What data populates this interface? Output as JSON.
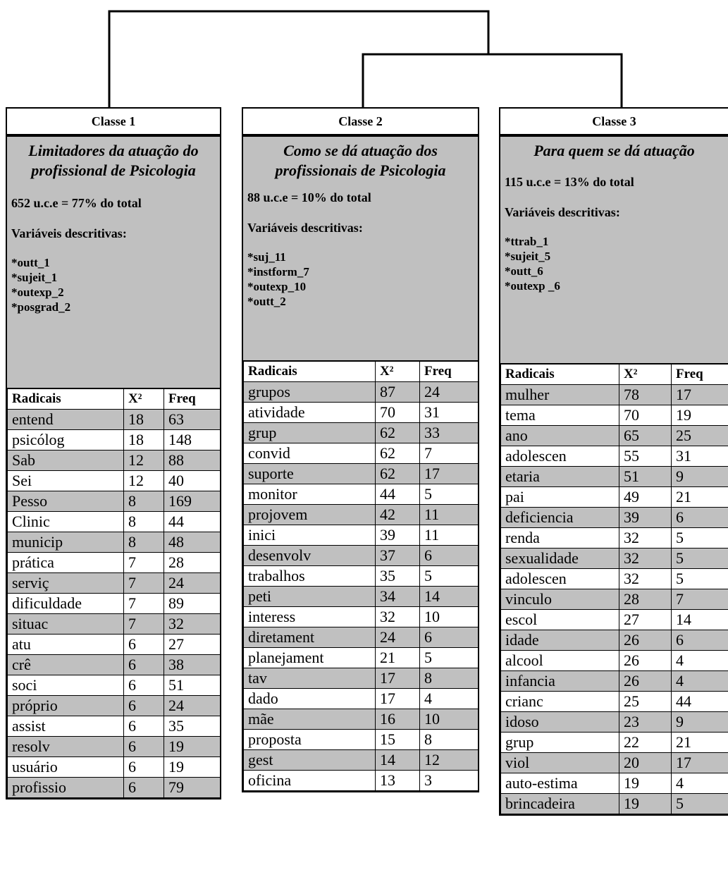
{
  "classes": [
    {
      "title": "Classe 1",
      "name": "Limitadores da atuação do profissional de Psicologia",
      "uce": "652 u.c.e = 77% do total",
      "variables_heading": "Variáveis descritivas:",
      "variables": [
        "*outt_1",
        "*sujeit_1",
        "*outexp_2",
        "*posgrad_2"
      ],
      "headers": [
        "Radicais",
        "X²",
        "Freq"
      ],
      "rows": [
        [
          "entend",
          "18",
          "63"
        ],
        [
          "psicólog",
          "18",
          "148"
        ],
        [
          "Sab",
          "12",
          "88"
        ],
        [
          "Sei",
          "12",
          "40"
        ],
        [
          "Pesso",
          "8",
          "169"
        ],
        [
          "Clinic",
          "8",
          "44"
        ],
        [
          "municip",
          "8",
          "48"
        ],
        [
          "prática",
          "7",
          "28"
        ],
        [
          "serviç",
          "7",
          "24"
        ],
        [
          "dificuldade",
          "7",
          "89"
        ],
        [
          "situac",
          "7",
          "32"
        ],
        [
          "atu",
          "6",
          "27"
        ],
        [
          "crê",
          "6",
          "38"
        ],
        [
          "soci",
          "6",
          "51"
        ],
        [
          "próprio",
          "6",
          "24"
        ],
        [
          "assist",
          "6",
          "35"
        ],
        [
          "resolv",
          "6",
          "19"
        ],
        [
          "usuário",
          "6",
          "19"
        ],
        [
          "profissio",
          "6",
          "79"
        ]
      ]
    },
    {
      "title": "Classe 2",
      "name": "Como se dá atuação dos profissionais de Psicologia",
      "uce": "88 u.c.e = 10% do total",
      "variables_heading": "Variáveis descritivas:",
      "variables": [
        "*suj_11",
        "*instform_7",
        "*outexp_10",
        "*outt_2"
      ],
      "headers": [
        "Radicais",
        "X²",
        "Freq"
      ],
      "rows": [
        [
          "grupos",
          "87",
          "24"
        ],
        [
          "atividade",
          "70",
          "31"
        ],
        [
          "grup",
          "62",
          "33"
        ],
        [
          "convid",
          "62",
          "7"
        ],
        [
          "suporte",
          "62",
          "17"
        ],
        [
          "monitor",
          "44",
          "5"
        ],
        [
          "projovem",
          "42",
          "11"
        ],
        [
          "inici",
          "39",
          "11"
        ],
        [
          "desenvolv",
          "37",
          "6"
        ],
        [
          "trabalhos",
          "35",
          "5"
        ],
        [
          "peti",
          "34",
          "14"
        ],
        [
          "interess",
          "32",
          "10"
        ],
        [
          "diretament",
          "24",
          "6"
        ],
        [
          "planejament",
          "21",
          "5"
        ],
        [
          "tav",
          "17",
          "8"
        ],
        [
          "dado",
          "17",
          "4"
        ],
        [
          "mãe",
          "16",
          "10"
        ],
        [
          "proposta",
          "15",
          "8"
        ],
        [
          "gest",
          "14",
          "12"
        ],
        [
          "oficina",
          "13",
          "3"
        ]
      ]
    },
    {
      "title": "Classe 3",
      "name": "Para quem se dá atuação",
      "uce": "115 u.c.e = 13% do total",
      "variables_heading": "Variáveis descritivas:",
      "variables": [
        "*ttrab_1",
        "*sujeit_5",
        "*outt_6",
        "*outexp _6"
      ],
      "headers": [
        "Radicais",
        "X²",
        "Freq"
      ],
      "rows": [
        [
          "mulher",
          "78",
          "17"
        ],
        [
          "tema",
          "70",
          "19"
        ],
        [
          "ano",
          "65",
          "25"
        ],
        [
          "adolescen",
          "55",
          "31"
        ],
        [
          "etaria",
          "51",
          "9"
        ],
        [
          "pai",
          "49",
          "21"
        ],
        [
          "deficiencia",
          "39",
          "6"
        ],
        [
          "renda",
          "32",
          "5"
        ],
        [
          "sexualidade",
          "32",
          "5"
        ],
        [
          "adolescen",
          "32",
          "5"
        ],
        [
          "vinculo",
          "28",
          "7"
        ],
        [
          "escol",
          "27",
          "14"
        ],
        [
          "idade",
          "26",
          "6"
        ],
        [
          "alcool",
          "26",
          "4"
        ],
        [
          "infancia",
          "26",
          "4"
        ],
        [
          "crianc",
          "25",
          "44"
        ],
        [
          "idoso",
          "23",
          "9"
        ],
        [
          "grup",
          "22",
          "21"
        ],
        [
          "viol",
          "20",
          "17"
        ],
        [
          "auto-estima",
          "19",
          "4"
        ],
        [
          "brincadeira",
          "19",
          "5"
        ]
      ]
    }
  ]
}
